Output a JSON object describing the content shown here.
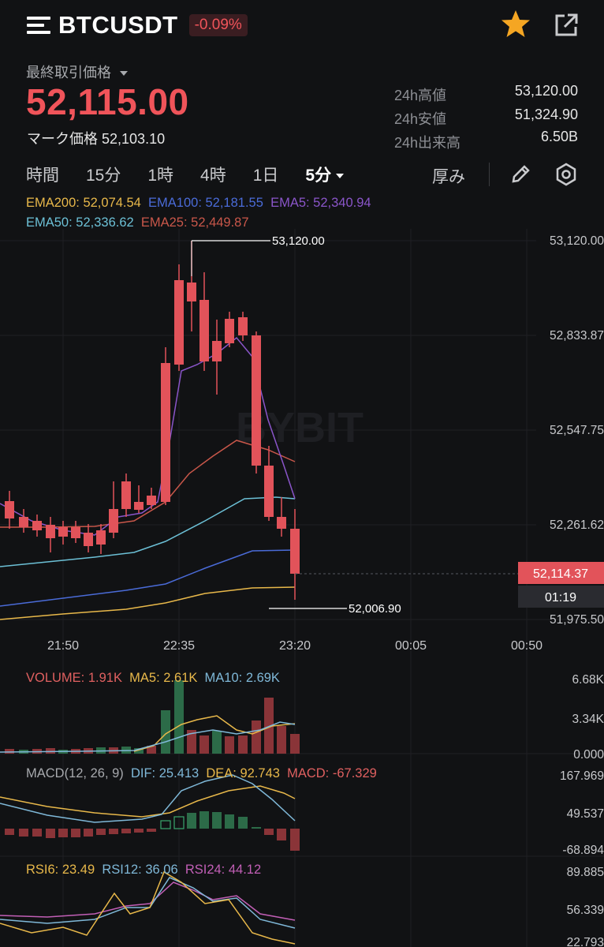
{
  "header": {
    "symbol": "BTCUSDT",
    "change": "-0.09%"
  },
  "price": {
    "label": "最終取引価格",
    "last": "52,115.00",
    "mark_label": "マーク価格",
    "mark_value": "52,103.10"
  },
  "stats": [
    {
      "label": "24h高値",
      "value": "53,120.00"
    },
    {
      "label": "24h安値",
      "value": "51,324.90"
    },
    {
      "label": "24h出来高",
      "value": "6.50B"
    }
  ],
  "tabs": {
    "items": [
      "時間",
      "15分",
      "1時",
      "4時",
      "1日"
    ],
    "active": "5分",
    "depth": "厚み"
  },
  "ema": {
    "row1": [
      {
        "text": "EMA200: 52,074.54",
        "color": "#e8b84a"
      },
      {
        "text": "EMA100: 52,181.55",
        "color": "#4a6bd8"
      },
      {
        "text": "EMA5: 52,340.94",
        "color": "#8a55c9"
      }
    ],
    "row2": [
      {
        "text": "EMA50: 52,336.62",
        "color": "#6cc0d6"
      },
      {
        "text": "EMA25: 52,449.87",
        "color": "#c9574a"
      }
    ]
  },
  "price_axis": [
    "53,120.00",
    "52,833.87",
    "52,547.75",
    "52,261.62",
    "51,975.50"
  ],
  "current_price_tag": "52,114.37",
  "countdown": "01:19",
  "high_marker": "53,120.00",
  "low_marker": "52,006.90",
  "watermark": "BYBIT",
  "time_axis": [
    "21:50",
    "22:35",
    "23:20",
    "00:05",
    "00:50"
  ],
  "volume": {
    "labels": [
      {
        "text": "VOLUME: 1.91K",
        "color": "#e06060"
      },
      {
        "text": "MA5: 2.61K",
        "color": "#e8b84a"
      },
      {
        "text": "MA10: 2.69K",
        "color": "#7fb8d8"
      }
    ],
    "axis": [
      "6.68K",
      "3.34K",
      "0.000"
    ]
  },
  "macd": {
    "labels": [
      {
        "text": "MACD(12, 26, 9)",
        "color": "#a7a9ad"
      },
      {
        "text": "DIF: 25.413",
        "color": "#7fb8d8"
      },
      {
        "text": "DEA: 92.743",
        "color": "#e8b84a"
      },
      {
        "text": "MACD: -67.329",
        "color": "#e06060"
      }
    ],
    "axis": [
      "167.969",
      "49.537",
      "-68.894"
    ]
  },
  "rsi": {
    "labels": [
      {
        "text": "RSI6: 23.49",
        "color": "#e8b84a"
      },
      {
        "text": "RSI12: 36.06",
        "color": "#7fb8d8"
      },
      {
        "text": "RSI24: 44.12",
        "color": "#c25fb6"
      }
    ],
    "axis": [
      "89.885",
      "56.339",
      "22.793"
    ]
  },
  "colors": {
    "up": "#3aa76d",
    "down": "#e2535a",
    "background": "#111214"
  },
  "icons": [
    "menu-icon",
    "star-icon",
    "share-icon",
    "pencil-icon",
    "gear-icon",
    "dropdown-icon"
  ]
}
